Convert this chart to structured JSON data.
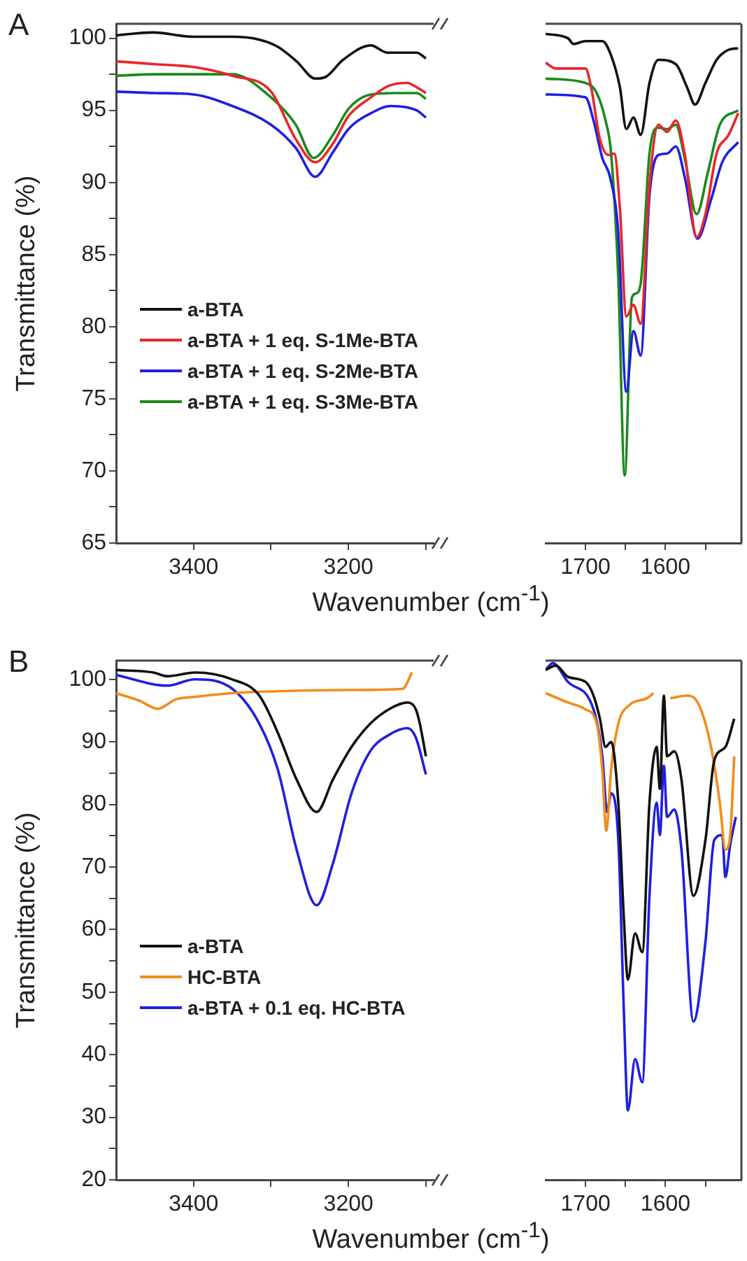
{
  "chart_data": [
    {
      "type": "line",
      "annotations": [
        "A"
      ],
      "ylabel": "Transmittance (%)",
      "xlabel": "Wavenumber (cm$^{-1}$)",
      "legend": "center left",
      "xlim": [
        3500,
        3090
      ],
      "xticks": [
        3400,
        {
          "value": 3300,
          "label": null
        },
        3200,
        {
          "value": 3100,
          "label": null
        }
      ],
      "ylim": [
        65,
        101
      ],
      "yticks": [
        65,
        {
          "value": 67.5,
          "label": null
        },
        70,
        {
          "value": 72.5,
          "label": null
        },
        75,
        {
          "value": 77.5,
          "label": null
        },
        80,
        {
          "value": 82.5,
          "label": null
        },
        85,
        {
          "value": 87.5,
          "label": null
        },
        90,
        {
          "value": 92.5,
          "label": null
        },
        95,
        {
          "value": 97.5,
          "label": null
        },
        100
      ],
      "series": [
        {
          "name": "a-BTA",
          "color": "#111111",
          "x": [
            3500,
            3452,
            3400,
            3350,
            3315,
            3291,
            3267,
            3243,
            3230,
            3207,
            3171,
            3150,
            3112,
            3100
          ],
          "values": [
            100.2,
            100.4,
            100.1,
            100.1,
            99.9,
            99.4,
            98.4,
            97.2,
            97.3,
            98.5,
            99.5,
            99.0,
            99.0,
            98.6
          ]
        },
        {
          "name": "a-BTA + 1 eq. S-1Me-BTA",
          "color": "#e8262a",
          "x": [
            3500,
            3450,
            3400,
            3350,
            3300,
            3268,
            3243,
            3220,
            3200,
            3171,
            3148,
            3124,
            3112,
            3100
          ],
          "values": [
            98.4,
            98.2,
            98.0,
            97.4,
            96.3,
            93.0,
            91.4,
            92.7,
            94.6,
            95.9,
            96.7,
            96.9,
            96.6,
            96.2
          ]
        },
        {
          "name": "a-BTA + 1 eq. S-2Me-BTA",
          "color": "#1f1fe0",
          "x": [
            3500,
            3450,
            3400,
            3350,
            3300,
            3268,
            3243,
            3220,
            3200,
            3171,
            3145,
            3112,
            3100
          ],
          "values": [
            96.3,
            96.2,
            96.1,
            95.3,
            94.0,
            92.4,
            90.4,
            92.1,
            93.7,
            94.8,
            95.3,
            95.0,
            94.5
          ]
        },
        {
          "name": "a-BTA + 1 eq. S-3Me-BTA",
          "color": "#1a8a1a",
          "x": [
            3500,
            3450,
            3400,
            3350,
            3300,
            3268,
            3245,
            3220,
            3200,
            3171,
            3140,
            3112,
            3100
          ],
          "values": [
            97.4,
            97.5,
            97.5,
            97.5,
            95.9,
            94.0,
            91.7,
            93.3,
            95.1,
            96.1,
            96.2,
            96.2,
            95.8
          ]
        }
      ]
    },
    {
      "type": "line",
      "tick_labels": "x",
      "xlim": [
        1750,
        1505
      ],
      "xticks": [
        1700,
        {
          "value": 1650,
          "label": null
        },
        1600,
        {
          "value": 1550,
          "label": null
        }
      ],
      "ylim": [
        65,
        101
      ],
      "series": [
        {
          "color": "#111111",
          "x": [
            1750,
            1722,
            1715,
            1700,
            1679,
            1668,
            1657,
            1649,
            1640,
            1631,
            1620,
            1609,
            1587,
            1573,
            1563,
            1550,
            1536,
            1521,
            1509
          ],
          "values": [
            100.3,
            100.0,
            99.6,
            99.8,
            99.8,
            98.8,
            96.6,
            93.7,
            94.5,
            93.3,
            96.9,
            98.5,
            98.2,
            96.6,
            95.4,
            96.9,
            98.5,
            99.2,
            99.3
          ]
        },
        {
          "color": "#e8262a",
          "x": [
            1750,
            1737,
            1722,
            1700,
            1693,
            1682,
            1671,
            1664,
            1657,
            1649,
            1640,
            1631,
            1620,
            1609,
            1598,
            1587,
            1576,
            1561,
            1550,
            1536,
            1521,
            1509
          ],
          "values": [
            98.3,
            97.9,
            97.9,
            97.9,
            96.6,
            93.0,
            91.9,
            92.0,
            88.2,
            80.7,
            81.5,
            80.2,
            89.8,
            94.0,
            93.5,
            94.3,
            92.0,
            86.2,
            87.8,
            92.0,
            93.3,
            94.8
          ]
        },
        {
          "color": "#1f1fe0",
          "x": [
            1750,
            1700,
            1690,
            1679,
            1669,
            1659,
            1649,
            1640,
            1631,
            1620,
            1609,
            1598,
            1587,
            1576,
            1560,
            1543,
            1529,
            1509
          ],
          "values": [
            96.1,
            95.9,
            94.3,
            91.7,
            90.3,
            86.5,
            75.5,
            79.7,
            78.0,
            89.1,
            91.9,
            92.0,
            92.5,
            90.4,
            86.1,
            88.8,
            91.4,
            92.8
          ]
        },
        {
          "color": "#1a8a1a",
          "x": [
            1750,
            1700,
            1686,
            1675,
            1668,
            1659,
            1651,
            1642,
            1637,
            1631,
            1620,
            1609,
            1598,
            1587,
            1576,
            1561,
            1547,
            1532,
            1509
          ],
          "values": [
            97.2,
            96.9,
            96.2,
            94.3,
            92.0,
            83.3,
            69.7,
            82.0,
            82.3,
            83.0,
            92.0,
            93.8,
            93.7,
            94.0,
            91.7,
            87.8,
            90.7,
            94.0,
            95.0
          ]
        }
      ]
    },
    {
      "type": "line",
      "annotations": [
        "B"
      ],
      "ylabel": "Transmittance (%)",
      "xlabel": "Wavenumber (cm$^{-1}$)",
      "legend": "center left",
      "xlim": [
        3500,
        3090
      ],
      "xticks": [
        3400,
        {
          "value": 3300,
          "label": null
        },
        3200,
        {
          "value": 3100,
          "label": null
        }
      ],
      "ylim": [
        20,
        103
      ],
      "yticks": [
        20,
        {
          "value": 25,
          "label": null
        },
        30,
        {
          "value": 35,
          "label": null
        },
        40,
        {
          "value": 45,
          "label": null
        },
        50,
        {
          "value": 55,
          "label": null
        },
        60,
        {
          "value": 65,
          "label": null
        },
        70,
        {
          "value": 75,
          "label": null
        },
        80,
        {
          "value": 85,
          "label": null
        },
        90,
        {
          "value": 95,
          "label": null
        },
        100
      ],
      "series": [
        {
          "name": "a-BTA",
          "color": "#111111",
          "x": [
            3500,
            3452,
            3434,
            3398,
            3350,
            3315,
            3291,
            3267,
            3241,
            3220,
            3196,
            3172,
            3148,
            3124,
            3113,
            3108,
            3100
          ],
          "values": [
            101.5,
            101.1,
            100.5,
            101.1,
            100.0,
            97.4,
            91.4,
            84.0,
            78.8,
            84.0,
            89.2,
            92.9,
            95.2,
            96.3,
            95.2,
            93.0,
            87.7
          ]
        },
        {
          "name": "HC-BTA",
          "color": "#f28c1c",
          "x": [
            3500,
            3470,
            3446,
            3423,
            3398,
            3350,
            3291,
            3196,
            3130,
            3118
          ],
          "values": [
            97.8,
            96.6,
            95.3,
            96.8,
            97.2,
            97.8,
            98.1,
            98.3,
            98.5,
            101.1
          ]
        },
        {
          "name": "a-BTA + 0.1 eq. HC-BTA",
          "color": "#1f1fe0",
          "x": [
            3500,
            3434,
            3398,
            3350,
            3315,
            3291,
            3267,
            3241,
            3220,
            3196,
            3172,
            3148,
            3124,
            3113,
            3100
          ],
          "values": [
            100.7,
            99.0,
            100.0,
            98.5,
            92.9,
            85.5,
            72.8,
            63.9,
            70.6,
            81.8,
            88.5,
            91.1,
            92.2,
            90.7,
            84.8
          ]
        }
      ]
    },
    {
      "type": "line",
      "tick_labels": "x",
      "xlim": [
        1750,
        1505
      ],
      "xticks": [
        1700,
        {
          "value": 1650,
          "label": null
        },
        1600,
        {
          "value": 1550,
          "label": null
        }
      ],
      "ylim": [
        20,
        103
      ],
      "series": [
        {
          "color": "#111111",
          "x": [
            1750,
            1737,
            1722,
            1700,
            1690,
            1682,
            1675,
            1668,
            1659,
            1652,
            1647,
            1638,
            1629,
            1620,
            1611,
            1607,
            1602,
            1598,
            1589,
            1580,
            1565,
            1550,
            1539,
            1525,
            1514
          ],
          "values": [
            101.5,
            102.2,
            100.4,
            99.6,
            97.4,
            93.7,
            89.2,
            90.0,
            80.3,
            61.7,
            52.0,
            59.4,
            56.4,
            80.3,
            89.2,
            82.5,
            97.4,
            87.7,
            88.5,
            84.0,
            65.4,
            74.3,
            87.0,
            89.2,
            93.7
          ]
        },
        {
          "color": "#f28c1c",
          "x": [
            1750,
            1722,
            1700,
            1686,
            1679,
            1674,
            1668,
            1659,
            1645,
            1623,
            1615,
            1611,
            1598,
            1594,
            1572,
            1558,
            1543,
            1532,
            1525,
            1519,
            1514
          ],
          "values": [
            97.8,
            96.3,
            95.2,
            92.9,
            85.5,
            75.8,
            85.5,
            92.9,
            95.9,
            97.0,
            97.8,
            null,
            null,
            97.0,
            97.4,
            95.9,
            89.2,
            80.3,
            72.8,
            75.1,
            87.7
          ]
        },
        {
          "color": "#1f1fe0",
          "x": [
            1750,
            1741,
            1722,
            1690,
            1679,
            1673,
            1668,
            1659,
            1652,
            1647,
            1638,
            1629,
            1620,
            1611,
            1607,
            1602,
            1598,
            1589,
            1580,
            1565,
            1550,
            1539,
            1529,
            1525,
            1519,
            1512
          ],
          "values": [
            101.5,
            102.6,
            99.6,
            95.2,
            87.7,
            78.8,
            81.8,
            74.3,
            46.8,
            31.1,
            39.3,
            35.6,
            65.4,
            80.3,
            75.1,
            86.2,
            78.0,
            79.2,
            72.8,
            45.3,
            58.0,
            74.3,
            75.1,
            68.4,
            73.6,
            78.0
          ]
        }
      ]
    }
  ]
}
